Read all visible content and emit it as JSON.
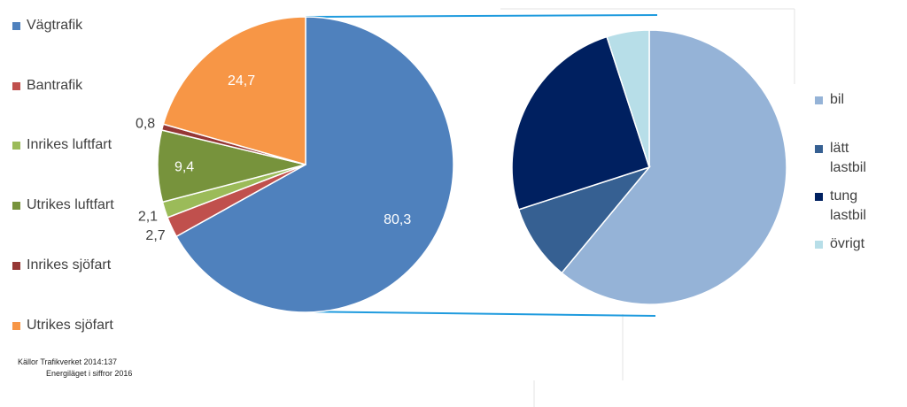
{
  "chart_data": [
    {
      "type": "pie",
      "series": [
        {
          "label": "Vägtrafik",
          "value": 80.3,
          "color": "#4F81BD"
        },
        {
          "label": "Bantrafik",
          "value": 2.7,
          "color": "#C0504D"
        },
        {
          "label": "Inrikes luftfart",
          "value": 2.1,
          "color": "#9BBB59"
        },
        {
          "label": "Utrikes luftfart",
          "value": 9.4,
          "color": "#77933C"
        },
        {
          "label": "Inrikes sjöfart",
          "value": 0.8,
          "color": "#953735"
        },
        {
          "label": "Utrikes sjöfart",
          "value": 24.7,
          "color": "#F79646"
        }
      ],
      "data_labels": [
        "80,3",
        "2,7",
        "2,1",
        "9,4",
        "0,8",
        "24,7"
      ],
      "legend_position": "left"
    },
    {
      "type": "pie",
      "series": [
        {
          "label": "bil",
          "value": 61,
          "color": "#95B3D7"
        },
        {
          "label": "lätt lastbil",
          "value": 9,
          "color": "#366092"
        },
        {
          "label": "tung lastbil",
          "value": 25,
          "color": "#002060"
        },
        {
          "label": "övrigt",
          "value": 5,
          "color": "#B7DEE8"
        }
      ],
      "legend_position": "right",
      "breakout_of": "Vägtrafik"
    }
  ],
  "source": {
    "line1": "Källor Trafikverket 2014:137",
    "line2": "Energiläget i siffror 2016"
  },
  "connector_color": "#1F9BDE"
}
